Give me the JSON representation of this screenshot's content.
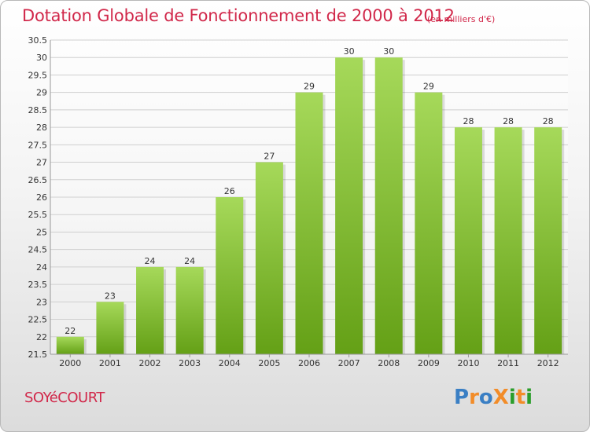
{
  "title": "Dotation Globale de Fonctionnement de 2000 à 2012",
  "subtitle": "(en milliers d'€)",
  "commune": "SOYéCOURT",
  "logo": {
    "text": "ProXiti",
    "letters": [
      {
        "ch": "P",
        "color": "#3a7fc4"
      },
      {
        "ch": "r",
        "color": "#f28c28"
      },
      {
        "ch": "o",
        "color": "#3a7fc4"
      },
      {
        "ch": "X",
        "color": "#f28c28"
      },
      {
        "ch": "i",
        "color": "#2a9d2a"
      },
      {
        "ch": "t",
        "color": "#f28c28"
      },
      {
        "ch": "i",
        "color": "#2a9d2a"
      }
    ]
  },
  "colors": {
    "title": "#d1284a",
    "bar_light": "#a6d95a",
    "bar_dark": "#64a016",
    "grid": "#cfcfcf"
  },
  "chart_data": {
    "type": "bar",
    "categories": [
      "2000",
      "2001",
      "2002",
      "2003",
      "2004",
      "2005",
      "2006",
      "2007",
      "2008",
      "2009",
      "2010",
      "2011",
      "2012"
    ],
    "values": [
      22,
      23,
      24,
      24,
      26,
      27,
      29,
      30,
      30,
      29,
      28,
      28,
      28
    ],
    "ylim": [
      21.5,
      30.5
    ],
    "yticks": [
      "21.5",
      "22",
      "22.5",
      "23",
      "23.5",
      "24",
      "24.5",
      "25",
      "25.5",
      "26",
      "26.5",
      "27",
      "27.5",
      "28",
      "28.5",
      "29",
      "29.5",
      "30",
      "30.5"
    ],
    "grid": true,
    "title": "Dotation Globale de Fonctionnement de 2000 à 2012",
    "xlabel": "",
    "ylabel": ""
  }
}
